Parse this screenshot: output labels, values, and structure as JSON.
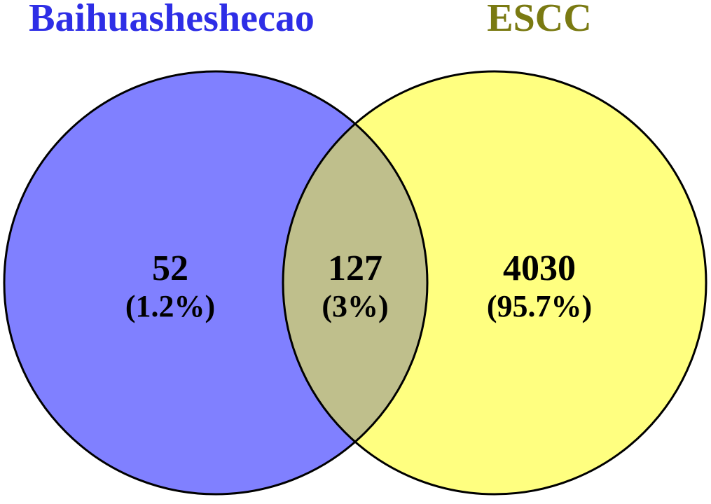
{
  "sets": [
    {
      "name": "Baihuasheshecao",
      "color": "#8080ff",
      "label_color": "#2e2ee6"
    },
    {
      "name": "ESCC",
      "color": "#ffff80",
      "label_color": "#7a7a12"
    }
  ],
  "overlap_color": "#bfbf8c",
  "regions": {
    "left_only": {
      "count": "52",
      "percent": "(1.2%)"
    },
    "intersection": {
      "count": "127",
      "percent": "(3%)"
    },
    "right_only": {
      "count": "4030",
      "percent": "(95.7%)"
    }
  }
}
